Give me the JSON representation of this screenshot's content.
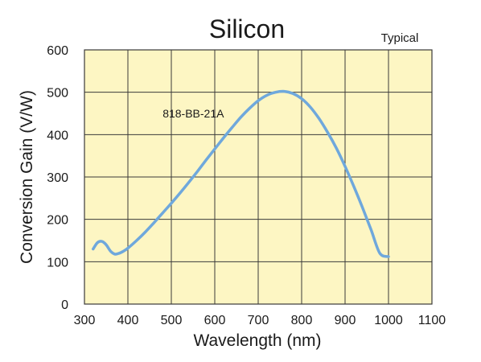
{
  "chart_data": {
    "type": "line",
    "title": "Silicon",
    "note": "Typical",
    "xlabel": "Wavelength (nm)",
    "ylabel": "Conversion Gain (V/W)",
    "xlim": [
      300,
      1100
    ],
    "ylim": [
      0,
      600
    ],
    "xticks": [
      300,
      400,
      500,
      600,
      700,
      800,
      900,
      1000,
      1100
    ],
    "yticks": [
      0,
      100,
      200,
      300,
      400,
      500,
      600
    ],
    "grid": true,
    "background_color": "#fdf6c3",
    "grid_color": "#3a3a3a",
    "series": [
      {
        "name": "818-BB-21A",
        "color": "#6fa8dc",
        "x": [
          320,
          330,
          340,
          350,
          360,
          370,
          380,
          390,
          400,
          420,
          440,
          460,
          480,
          500,
          520,
          540,
          560,
          580,
          600,
          620,
          640,
          660,
          680,
          700,
          720,
          740,
          760,
          780,
          800,
          820,
          840,
          860,
          880,
          900,
          920,
          940,
          960,
          980,
          1000
        ],
        "y": [
          130,
          145,
          148,
          140,
          125,
          118,
          120,
          125,
          132,
          150,
          170,
          192,
          215,
          238,
          262,
          287,
          313,
          340,
          366,
          392,
          417,
          441,
          462,
          480,
          493,
          500,
          502,
          497,
          485,
          465,
          438,
          405,
          368,
          325,
          278,
          228,
          175,
          120,
          112
        ]
      }
    ]
  }
}
